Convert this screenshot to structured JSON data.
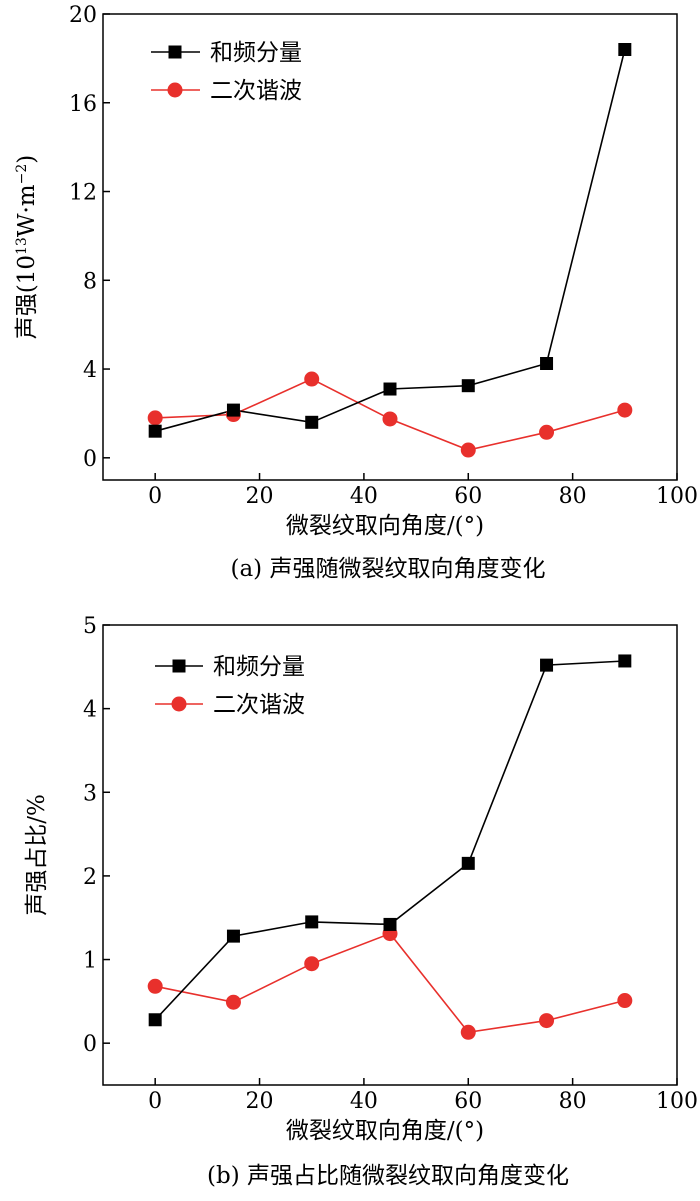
{
  "chart_data": [
    {
      "type": "line",
      "title": "",
      "caption": "(a) 声强随微裂纹取向角度变化",
      "xlabel": "微裂纹取向角度/(°)",
      "ylabel_prefix": "声强(10",
      "ylabel_exp": "13",
      "ylabel_mid": "W·m",
      "ylabel_exp2": "−2",
      "ylabel_suffix": ")",
      "xlim": [
        -10,
        100
      ],
      "ylim": [
        -1,
        20
      ],
      "xticks": [
        0,
        20,
        40,
        60,
        80,
        100
      ],
      "yticks": [
        0,
        4,
        8,
        12,
        16,
        20
      ],
      "x": [
        0,
        15,
        30,
        45,
        60,
        75,
        90
      ],
      "series": [
        {
          "name": "和频分量",
          "color": "#000000",
          "marker": "square",
          "values": [
            1.2,
            2.15,
            1.6,
            3.1,
            3.25,
            4.25,
            18.4
          ]
        },
        {
          "name": "二次谐波",
          "color": "#e8302c",
          "marker": "circle",
          "values": [
            1.8,
            1.95,
            3.55,
            1.75,
            0.35,
            1.15,
            2.15
          ]
        }
      ],
      "legend": "top-left"
    },
    {
      "type": "line",
      "title": "",
      "caption": "(b) 声强占比随微裂纹取向角度变化",
      "xlabel": "微裂纹取向角度/(°)",
      "ylabel": "声强占比/%",
      "xlim": [
        -10,
        100
      ],
      "ylim": [
        -0.5,
        5
      ],
      "xticks": [
        0,
        20,
        40,
        60,
        80,
        100
      ],
      "yticks": [
        0,
        1,
        2,
        3,
        4,
        5
      ],
      "x": [
        0,
        15,
        30,
        45,
        60,
        75,
        90
      ],
      "series": [
        {
          "name": "和频分量",
          "color": "#000000",
          "marker": "square",
          "values": [
            0.28,
            1.28,
            1.45,
            1.42,
            2.15,
            4.52,
            4.57
          ]
        },
        {
          "name": "二次谐波",
          "color": "#e8302c",
          "marker": "circle",
          "values": [
            0.68,
            0.49,
            0.95,
            1.31,
            0.13,
            0.27,
            0.51
          ]
        }
      ],
      "legend": "top-left"
    }
  ]
}
